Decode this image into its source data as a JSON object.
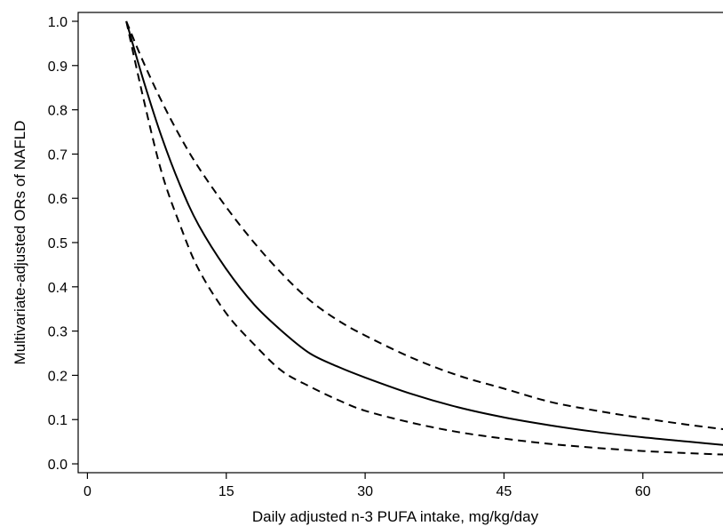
{
  "chart_data": {
    "type": "line",
    "title": "",
    "xlabel": "Daily adjusted n-3 PUFA intake, mg/kg/day",
    "ylabel": "Multivariate-adjusted ORs of NAFLD",
    "xlim": [
      -1,
      70
    ],
    "ylim": [
      -0.02,
      1.02
    ],
    "xticks": [
      0,
      15,
      30,
      45,
      60
    ],
    "xtick_labels": [
      "0",
      "15",
      "30",
      "45",
      "60"
    ],
    "yticks": [
      0.0,
      0.1,
      0.2,
      0.3,
      0.4,
      0.5,
      0.6,
      0.7,
      0.8,
      0.9,
      1.0
    ],
    "ytick_labels": [
      "0.0",
      "0.1",
      "0.2",
      "0.3",
      "0.4",
      "0.5",
      "0.6",
      "0.7",
      "0.8",
      "0.9",
      "1.0"
    ],
    "grid": false,
    "legend": "none",
    "x": [
      4.2,
      6,
      8,
      10,
      12,
      15,
      18,
      21,
      24,
      27,
      30,
      35,
      40,
      45,
      50,
      55,
      60,
      65,
      70
    ],
    "series": [
      {
        "style": "solid",
        "color": "#000000",
        "values": [
          1.0,
          0.87,
          0.74,
          0.63,
          0.54,
          0.44,
          0.36,
          0.3,
          0.25,
          0.22,
          0.195,
          0.158,
          0.128,
          0.105,
          0.087,
          0.072,
          0.06,
          0.05,
          0.04
        ]
      },
      {
        "style": "dashed",
        "color": "#000000",
        "values": [
          1.0,
          0.91,
          0.82,
          0.74,
          0.67,
          0.58,
          0.5,
          0.43,
          0.37,
          0.325,
          0.29,
          0.24,
          0.2,
          0.17,
          0.14,
          0.12,
          0.103,
          0.088,
          0.075
        ]
      },
      {
        "style": "dashed",
        "color": "#000000",
        "values": [
          1.0,
          0.83,
          0.66,
          0.54,
          0.44,
          0.34,
          0.27,
          0.21,
          0.175,
          0.145,
          0.12,
          0.093,
          0.072,
          0.057,
          0.045,
          0.036,
          0.029,
          0.024,
          0.02
        ]
      }
    ]
  }
}
